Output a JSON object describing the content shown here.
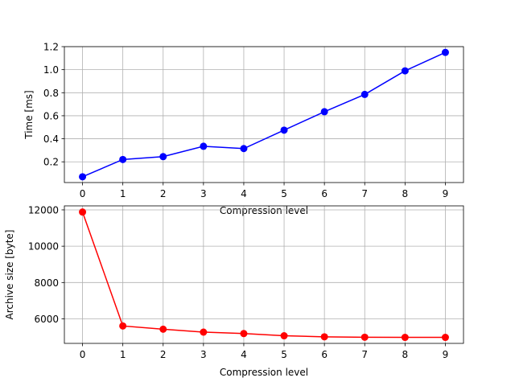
{
  "chart_data": [
    {
      "type": "line",
      "xlabel": "Compression level",
      "ylabel": "Time [ms]",
      "x": [
        0,
        1,
        2,
        3,
        4,
        5,
        6,
        7,
        8,
        9
      ],
      "xticks": [
        "0",
        "1",
        "2",
        "3",
        "4",
        "5",
        "6",
        "7",
        "8",
        "9"
      ],
      "yticks": [
        "0.2",
        "0.4",
        "0.6",
        "0.8",
        "1.0",
        "1.2"
      ],
      "ytick_values": [
        0.2,
        0.4,
        0.6,
        0.8,
        1.0,
        1.2
      ],
      "xlim": [
        -0.45,
        9.45
      ],
      "ylim": [
        0.02,
        1.2
      ],
      "grid": true,
      "series": [
        {
          "color": "#0000ff",
          "marker": "circle",
          "values": [
            0.07,
            0.22,
            0.245,
            0.335,
            0.315,
            0.475,
            0.635,
            0.785,
            0.99,
            1.15
          ]
        }
      ]
    },
    {
      "type": "line",
      "xlabel": "Compression level",
      "ylabel": "Archive size [byte]",
      "x": [
        0,
        1,
        2,
        3,
        4,
        5,
        6,
        7,
        8,
        9
      ],
      "xticks": [
        "0",
        "1",
        "2",
        "3",
        "4",
        "5",
        "6",
        "7",
        "8",
        "9"
      ],
      "yticks": [
        "6000",
        "8000",
        "10000",
        "12000"
      ],
      "ytick_values": [
        6000,
        8000,
        10000,
        12000
      ],
      "xlim": [
        -0.45,
        9.45
      ],
      "ylim": [
        4650,
        12220
      ],
      "grid": true,
      "series": [
        {
          "color": "#ff0000",
          "marker": "circle",
          "values": [
            11880,
            5610,
            5430,
            5270,
            5190,
            5070,
            5010,
            4990,
            4980,
            4980
          ]
        }
      ]
    }
  ]
}
